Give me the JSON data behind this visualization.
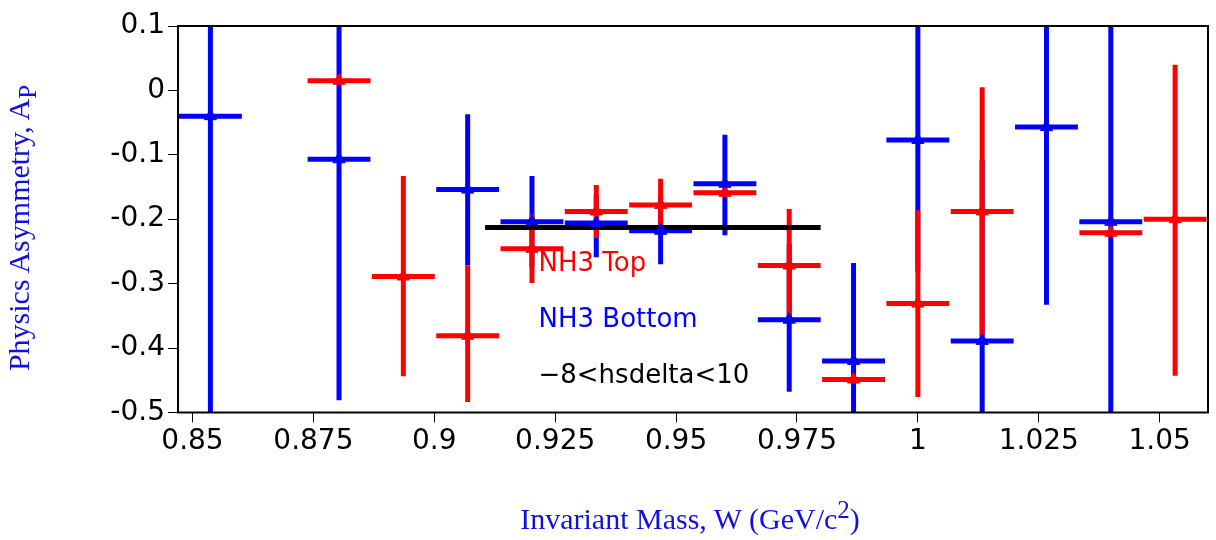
{
  "chart_data": {
    "type": "scatter",
    "xlabel": "Invariant Mass, W (GeV/c$^{2}$)",
    "ylabel": "Physics Asymmetry, A$_{P}$",
    "x": [
      0.8537,
      0.867,
      0.8803,
      0.8936,
      0.9069,
      0.9202,
      0.9335,
      0.9468,
      0.9601,
      0.9734,
      0.9867,
      1.0,
      1.0133,
      1.0266,
      1.0399,
      1.0532
    ],
    "series": [
      {
        "name": "NH3 Bottom",
        "color": "#0000ff",
        "values": [
          -0.04,
          null,
          -0.107,
          null,
          -0.154,
          -0.204,
          -0.206,
          -0.218,
          -0.145,
          -0.356,
          -0.42,
          -0.077,
          -0.389,
          -0.057,
          -0.204,
          null
        ],
        "errors": [
          [
            -0.5,
            0.1
          ],
          null,
          [
            -0.481,
            0.1
          ],
          null,
          [
            -0.272,
            -0.037
          ],
          [
            -0.274,
            -0.133
          ],
          [
            -0.259,
            -0.163
          ],
          [
            -0.27,
            -0.166
          ],
          [
            -0.225,
            -0.069
          ],
          [
            -0.468,
            -0.239
          ],
          [
            -0.5,
            -0.268
          ],
          [
            -0.281,
            0.1
          ],
          [
            -0.5,
            -0.108
          ],
          [
            -0.333,
            0.1
          ],
          [
            -0.5,
            0.1
          ],
          null
        ],
        "xerrors": [
          0.0065,
          null,
          0.0065,
          null,
          0.0065,
          0.0065,
          0.0065,
          0.0065,
          0.0065,
          0.0065,
          0.0065,
          0.0065,
          0.0065,
          0.0065,
          0.0065,
          null
        ]
      },
      {
        "name": "NH3 Top",
        "color": "#ff0000",
        "values": [
          null,
          null,
          0.015,
          -0.289,
          -0.381,
          -0.246,
          -0.188,
          -0.178,
          -0.159,
          -0.272,
          -0.449,
          -0.331,
          -0.188,
          null,
          -0.221,
          -0.2
        ],
        "errors": [
          null,
          null,
          null,
          [
            -0.444,
            -0.133
          ],
          [
            -0.484,
            -0.272
          ],
          [
            -0.299,
            -0.193
          ],
          [
            -0.229,
            -0.147
          ],
          [
            -0.219,
            -0.137
          ],
          null,
          [
            -0.36,
            -0.184
          ],
          null,
          [
            -0.476,
            -0.186
          ],
          [
            -0.381,
            0.005
          ],
          null,
          null,
          [
            -0.443,
            0.04
          ]
        ],
        "xerrors": [
          null,
          null,
          0.0065,
          0.0065,
          0.0065,
          0.0065,
          0.0065,
          0.0065,
          0.0065,
          0.0065,
          0.0065,
          0.0065,
          0.0065,
          null,
          0.0065,
          0.0065
        ]
      },
      {
        "type": "line",
        "marker": "none",
        "color": "#000000",
        "x": [
          0.9105,
          0.9799
        ],
        "values": [
          -0.213,
          -0.213
        ]
      }
    ],
    "annotations": [
      "−8<hsdelta<10"
    ],
    "legend": "bottom",
    "marker": "triangle",
    "xlim": [
      0.847,
      1.06
    ],
    "xticks": [
      0.85,
      0.875,
      0.9,
      0.925,
      0.95,
      0.975,
      1,
      1.025,
      1.05
    ],
    "ylim": [
      -0.5,
      0.1
    ],
    "yticks": [
      -0.5,
      -0.4,
      -0.3,
      -0.2,
      -0.1,
      0,
      0.1
    ]
  }
}
